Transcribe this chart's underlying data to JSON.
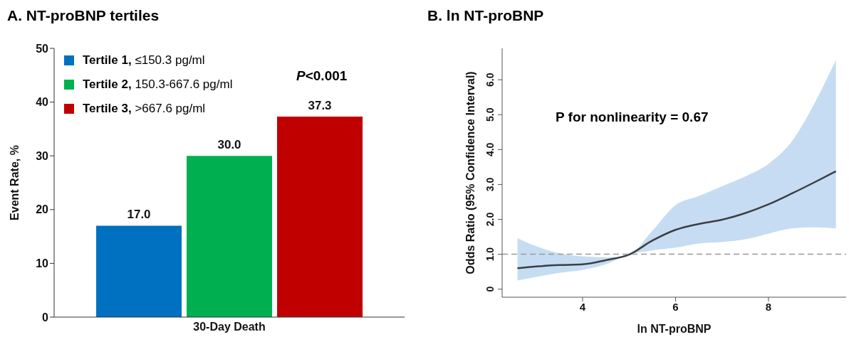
{
  "chart_data": [
    {
      "type": "bar",
      "title": "A. NT-proBNP tertiles",
      "ylabel": "Event Rate, %",
      "categories": [
        "30-Day Death"
      ],
      "series": [
        {
          "name": "Tertile 1, ≤150.3 pg/ml",
          "color": "#0070c0",
          "values": [
            17.0
          ],
          "value_labels": [
            "17.0"
          ]
        },
        {
          "name": "Tertile 2, 150.3-667.6 pg/ml",
          "color": "#00b050",
          "values": [
            30.0
          ],
          "value_labels": [
            "30.0"
          ]
        },
        {
          "name": "Tertile 3, >667.6 pg/ml",
          "color": "#c00000",
          "values": [
            37.3
          ],
          "value_labels": [
            "37.3"
          ]
        }
      ],
      "ylim": [
        0,
        50
      ],
      "yticks": [
        0,
        10,
        20,
        30,
        40,
        50
      ],
      "legend": "top left",
      "grid": false,
      "annotations": [
        "P<0.001"
      ]
    },
    {
      "type": "line",
      "title": "B. ln NT-proBNP",
      "xlabel": "ln NT-proBNP",
      "ylabel": "Odds Ratio (95% Confidence Interval)",
      "x": [
        2.6,
        3.0,
        3.5,
        4.0,
        4.5,
        5.0,
        5.5,
        6.0,
        6.5,
        7.0,
        7.5,
        8.0,
        8.5,
        9.0,
        9.45
      ],
      "series": [
        {
          "color": "#3a3f44",
          "values": [
            0.6,
            0.65,
            0.69,
            0.71,
            0.83,
            0.99,
            1.39,
            1.7,
            1.87,
            1.99,
            2.18,
            2.43,
            2.74,
            3.07,
            3.38
          ],
          "lower": [
            0.25,
            0.35,
            0.47,
            0.55,
            0.71,
            0.99,
            1.11,
            1.19,
            1.31,
            1.35,
            1.43,
            1.59,
            1.74,
            1.77,
            1.74
          ],
          "upper": [
            1.46,
            1.23,
            1.03,
            0.94,
            0.91,
            0.99,
            1.67,
            2.41,
            2.67,
            2.95,
            3.23,
            3.59,
            4.23,
            5.35,
            6.57
          ]
        }
      ],
      "xlim": [
        2.27,
        9.67
      ],
      "xticks": [
        4,
        6,
        8
      ],
      "ylim": [
        -0.23,
        6.9
      ],
      "yticks": [
        0,
        {
          "value": 1,
          "label": "1.0"
        },
        {
          "value": 2,
          "label": "2.0"
        },
        {
          "value": 3,
          "label": "3.0"
        },
        {
          "value": 4,
          "label": "4.0"
        },
        {
          "value": 5,
          "label": "5.0"
        },
        {
          "value": 6,
          "label": "6.0"
        }
      ],
      "ref_lines": [
        {
          "axis": "y",
          "value": 1,
          "color": "#999999",
          "line_style": "dashed"
        }
      ],
      "grid": false,
      "legend": false,
      "marker": "none",
      "line_style": "solid",
      "annotations": [
        "P for nonlinearity = 0.67"
      ]
    }
  ]
}
